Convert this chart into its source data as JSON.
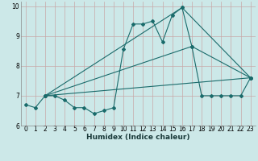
{
  "xlabel": "Humidex (Indice chaleur)",
  "background_color": "#cce8e8",
  "grid_color": "#c8a8a8",
  "line_color": "#1a6b6b",
  "xlim": [
    -0.5,
    23.5
  ],
  "ylim": [
    6,
    10.15
  ],
  "yticks": [
    6,
    7,
    8,
    9,
    10
  ],
  "xticks": [
    0,
    1,
    2,
    3,
    4,
    5,
    6,
    7,
    8,
    9,
    10,
    11,
    12,
    13,
    14,
    15,
    16,
    17,
    18,
    19,
    20,
    21,
    22,
    23
  ],
  "series1_x": [
    0,
    1,
    2,
    3,
    4,
    5,
    6,
    7,
    8,
    9,
    10,
    11,
    12,
    13,
    14,
    15,
    16,
    17,
    18,
    19,
    20,
    21,
    22,
    23
  ],
  "series1_y": [
    6.7,
    6.6,
    7.0,
    7.0,
    6.85,
    6.6,
    6.6,
    6.4,
    6.5,
    6.6,
    8.55,
    9.4,
    9.4,
    9.5,
    8.8,
    9.7,
    9.95,
    8.65,
    7.0,
    7.0,
    7.0,
    7.0,
    7.0,
    7.6
  ],
  "series2_x": [
    2,
    23
  ],
  "series2_y": [
    7.0,
    7.6
  ],
  "series3_x": [
    2,
    17,
    23
  ],
  "series3_y": [
    7.0,
    8.65,
    7.6
  ],
  "series4_x": [
    2,
    16,
    23
  ],
  "series4_y": [
    7.0,
    9.95,
    7.6
  ]
}
